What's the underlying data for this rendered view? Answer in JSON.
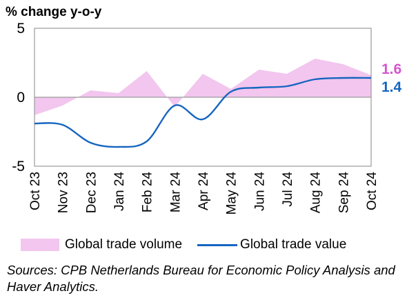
{
  "chart_data": {
    "type": "area",
    "ylabel": "% change y-o-y",
    "categories": [
      "Oct 23",
      "Nov 23",
      "Dec 23",
      "Jan 24",
      "Feb 24",
      "Mar 24",
      "Apr 24",
      "May 24",
      "Jun 24",
      "Jul 24",
      "Aug 24",
      "Sep 24",
      "Oct 24"
    ],
    "yticks": [
      5,
      0,
      -5
    ],
    "ylim": [
      -5,
      5
    ],
    "series": [
      {
        "name": "Global trade volume",
        "style": "area",
        "color": "#f2c6ee",
        "label_color": "#d455d0",
        "values": [
          -1.3,
          -0.6,
          0.5,
          0.3,
          1.9,
          -0.7,
          1.7,
          0.6,
          2.0,
          1.7,
          2.8,
          2.4,
          1.6
        ],
        "end_label": "1.6"
      },
      {
        "name": "Global trade value",
        "style": "line",
        "color": "#1565c0",
        "label_color": "#1565c0",
        "values": [
          -1.9,
          -2.0,
          -3.3,
          -3.6,
          -3.2,
          -0.6,
          -1.6,
          0.4,
          0.7,
          0.8,
          1.3,
          1.4,
          1.4
        ],
        "end_label": "1.4"
      }
    ],
    "source": "Sources: CPB Netherlands Bureau for Economic Policy Analysis and Haver Analytics."
  }
}
